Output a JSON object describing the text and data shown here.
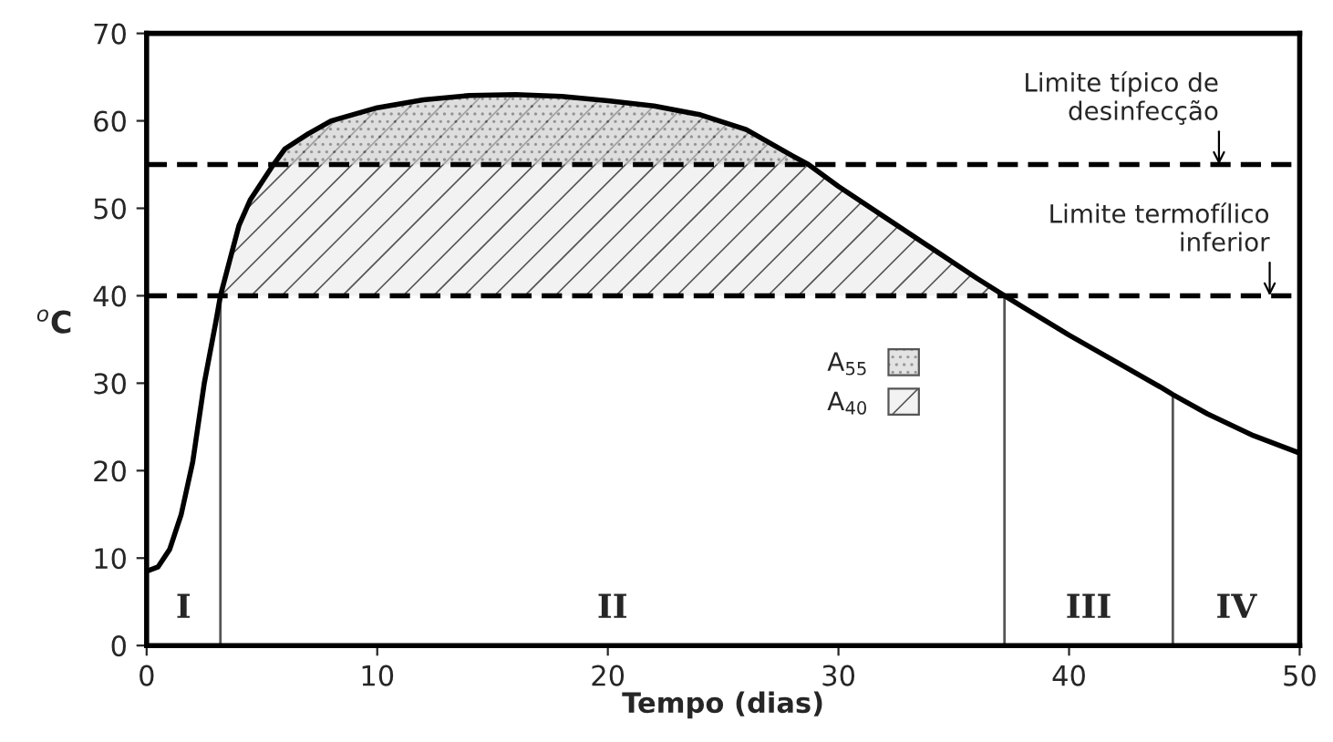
{
  "chart_data": {
    "type": "line",
    "xlabel": "Tempo (dias)",
    "ylabel": "$^{o}$C",
    "xlim": [
      0,
      50
    ],
    "xticks": [
      0,
      10,
      20,
      30,
      40,
      50
    ],
    "ylim": [
      0,
      70
    ],
    "yticks": [
      0,
      10,
      20,
      30,
      40,
      50,
      60,
      70
    ],
    "grid": false,
    "legend": "center",
    "marker": "none",
    "line_style": "solid",
    "series": [
      {
        "color": "#000000",
        "x": [
          0,
          0.5,
          1,
          1.5,
          2,
          2.5,
          3,
          3.2,
          3.6,
          4,
          4.5,
          5,
          5.5,
          6,
          7,
          8,
          10,
          12,
          14,
          16,
          18,
          20,
          22,
          24,
          26,
          28,
          28.7,
          30,
          32,
          34,
          36,
          37.2,
          38,
          40,
          42,
          44,
          44.5,
          46,
          48,
          50
        ],
        "values": [
          8.5,
          9,
          11,
          15,
          21,
          30,
          37,
          40,
          44,
          48,
          51,
          53,
          55,
          56.8,
          58.5,
          60,
          61.5,
          62.4,
          62.9,
          63,
          62.8,
          62.3,
          61.7,
          60.7,
          59,
          56,
          55,
          52.5,
          49,
          45.5,
          42,
          40,
          38.7,
          35.5,
          32.5,
          29.5,
          28.7,
          26.5,
          24,
          22
        ]
      },
      {
        "type": "area",
        "name": "A$_{55}$",
        "color": "#d0d0d0",
        "x": [
          5.5,
          6,
          7,
          8,
          10,
          12,
          14,
          16,
          18,
          20,
          22,
          24,
          26,
          28,
          28.7
        ],
        "values": [
          55,
          56.8,
          58.5,
          60,
          61.5,
          62.4,
          62.9,
          63,
          62.8,
          62.3,
          61.7,
          60.7,
          59,
          56,
          55
        ]
      },
      {
        "type": "area",
        "name": "A$_{40}$",
        "color": "#f2f2f2",
        "x": [
          3.2,
          3.6,
          4,
          4.5,
          5,
          5.5,
          6,
          7,
          8,
          10,
          12,
          14,
          16,
          18,
          20,
          22,
          24,
          26,
          28,
          28.7,
          30,
          32,
          34,
          36,
          37.2
        ],
        "values": [
          40,
          44,
          48,
          51,
          53,
          55,
          56.8,
          58.5,
          60,
          61.5,
          62.4,
          62.9,
          63,
          62.8,
          62.3,
          61.7,
          60.7,
          59,
          56,
          55,
          52.5,
          49,
          45.5,
          42,
          40
        ]
      }
    ],
    "ref_lines": [
      {
        "axis": "y",
        "value": 55,
        "color": "#000000",
        "line_style": "dashed"
      },
      {
        "axis": "y",
        "value": 40,
        "color": "#000000",
        "line_style": "dashed"
      },
      {
        "axis": "x",
        "value": 3.2,
        "color": "#555555",
        "line_style": "solid"
      },
      {
        "axis": "x",
        "value": 37.2,
        "color": "#555555",
        "line_style": "solid"
      },
      {
        "axis": "x",
        "value": 44.5,
        "color": "#555555",
        "line_style": "solid"
      }
    ],
    "annotations": [
      {
        "text": "Limite típico de\ndesinfecção",
        "x": 46.5,
        "y": 55
      },
      {
        "text": "Limite termofílico\ninferior",
        "x": 48.7,
        "y": 40
      },
      "I",
      "II",
      "III",
      "IV"
    ]
  }
}
